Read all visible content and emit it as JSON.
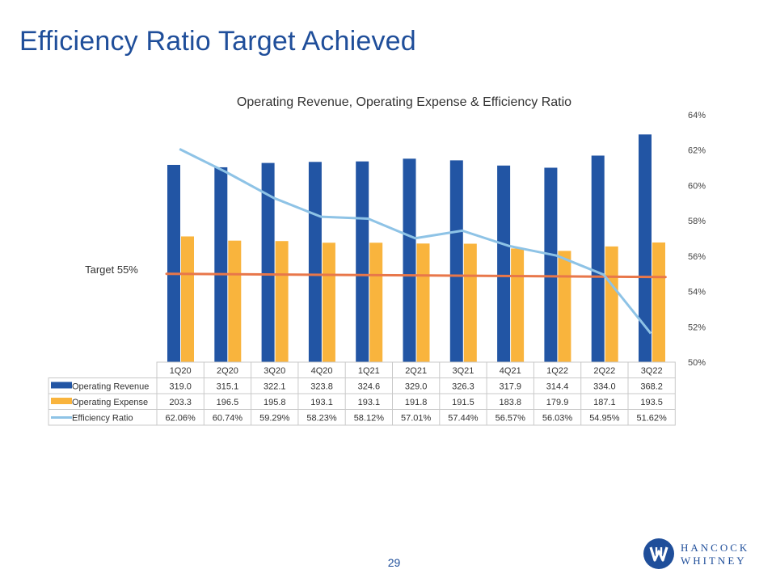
{
  "slide": {
    "title": "Efficiency Ratio Target Achieved",
    "page_number": "29"
  },
  "brand": {
    "line1": "HANCOCK",
    "line2": "WHITNEY",
    "primary_color": "#1f4e9a"
  },
  "chart_data": {
    "type": "bar",
    "title": "Operating Revenue, Operating Expense & Efficiency Ratio",
    "categories": [
      "1Q20",
      "2Q20",
      "3Q20",
      "4Q20",
      "1Q21",
      "2Q21",
      "3Q21",
      "4Q21",
      "1Q22",
      "2Q22",
      "3Q22"
    ],
    "series": [
      {
        "name": "Operating Revenue",
        "kind": "bar",
        "color": "#2255a4",
        "values": [
          319.0,
          315.1,
          322.1,
          323.8,
          324.6,
          329.0,
          326.3,
          317.9,
          314.4,
          334.0,
          368.2
        ],
        "labels": [
          "319.0",
          "315.1",
          "322.1",
          "323.8",
          "324.6",
          "329.0",
          "326.3",
          "317.9",
          "314.4",
          "334.0",
          "368.2"
        ]
      },
      {
        "name": "Operating Expense",
        "kind": "bar",
        "color": "#f9b43d",
        "values": [
          203.3,
          196.5,
          195.8,
          193.1,
          193.1,
          191.8,
          191.5,
          183.8,
          179.9,
          187.1,
          193.5
        ],
        "labels": [
          "203.3",
          "196.5",
          "195.8",
          "193.1",
          "193.1",
          "191.8",
          "191.5",
          "183.8",
          "179.9",
          "187.1",
          "193.5"
        ]
      },
      {
        "name": "Efficiency Ratio",
        "kind": "line",
        "axis": "right",
        "color": "#8ec3e6",
        "values": [
          62.06,
          60.74,
          59.29,
          58.23,
          58.12,
          57.01,
          57.44,
          56.57,
          56.03,
          54.95,
          51.62
        ],
        "labels": [
          "62.06%",
          "60.74%",
          "59.29%",
          "58.23%",
          "58.12%",
          "57.01%",
          "57.44%",
          "56.57%",
          "56.03%",
          "54.95%",
          "51.62%"
        ]
      }
    ],
    "target": {
      "label": "Target 55%",
      "value": 55,
      "color": "#e8774a"
    },
    "right_axis": {
      "ylim": [
        50,
        64
      ],
      "ticks": [
        "50%",
        "52%",
        "54%",
        "56%",
        "58%",
        "60%",
        "62%",
        "64%"
      ]
    },
    "grid": false,
    "legend": "table-below"
  }
}
